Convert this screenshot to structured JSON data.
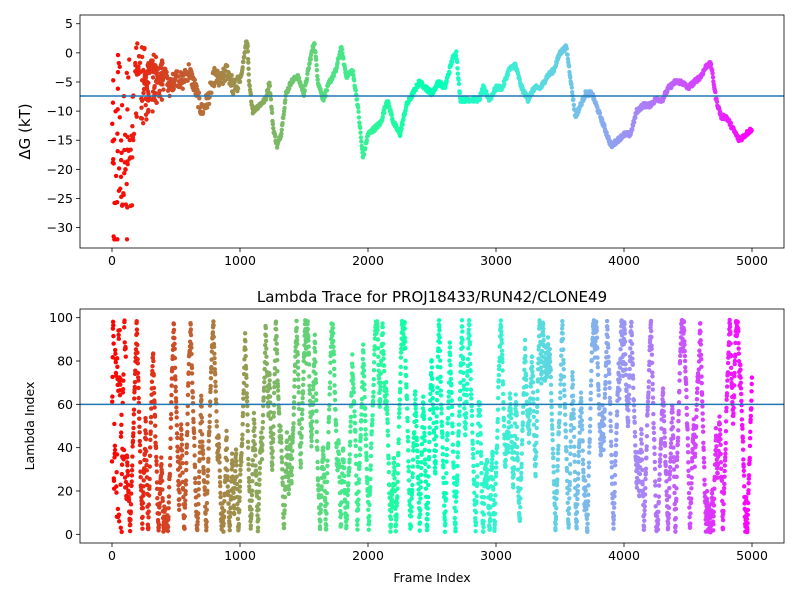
{
  "chart_data": [
    {
      "type": "scatter",
      "title": "",
      "xlabel": "",
      "ylabel": "ΔG (kT)",
      "xlim": [
        -250,
        5250
      ],
      "ylim": [
        -33.5,
        6.5
      ],
      "xticks": [
        0,
        1000,
        2000,
        3000,
        4000,
        5000
      ],
      "xtick_labels": [
        "0",
        "1000",
        "2000",
        "3000",
        "4000",
        "5000"
      ],
      "yticks": [
        5,
        0,
        -5,
        -10,
        -15,
        -20,
        -25,
        -30
      ],
      "ytick_labels": [
        "5",
        "0",
        "−5",
        "−10",
        "−15",
        "−20",
        "−25",
        "−30"
      ],
      "hline": -7.4,
      "hline_color": "#1f77b4",
      "colormap": "rainbow (red at frame 0 → violet at frame 5000)",
      "trace": [
        [
          0,
          -8
        ],
        [
          20,
          4
        ],
        [
          40,
          -5
        ],
        [
          60,
          -28
        ],
        [
          80,
          -10
        ],
        [
          100,
          -4
        ],
        [
          120,
          0
        ],
        [
          150,
          -3
        ],
        [
          200,
          -2
        ],
        [
          250,
          -5
        ],
        [
          300,
          -2
        ],
        [
          350,
          -4
        ],
        [
          400,
          -3
        ],
        [
          450,
          -6
        ],
        [
          500,
          -4
        ],
        [
          550,
          -5
        ],
        [
          600,
          -3
        ],
        [
          650,
          -6
        ],
        [
          700,
          -10
        ],
        [
          750,
          -8
        ],
        [
          800,
          -4
        ],
        [
          850,
          -5
        ],
        [
          900,
          -3
        ],
        [
          950,
          -6
        ],
        [
          1000,
          -5
        ],
        [
          1030,
          -1
        ],
        [
          1050,
          2
        ],
        [
          1060,
          1
        ],
        [
          1070,
          -5
        ],
        [
          1100,
          -10
        ],
        [
          1150,
          -9
        ],
        [
          1200,
          -8
        ],
        [
          1230,
          -5
        ],
        [
          1260,
          -13
        ],
        [
          1290,
          -16
        ],
        [
          1320,
          -14
        ],
        [
          1360,
          -7
        ],
        [
          1400,
          -5
        ],
        [
          1450,
          -4
        ],
        [
          1500,
          -7
        ],
        [
          1550,
          -1
        ],
        [
          1580,
          2
        ],
        [
          1610,
          -5
        ],
        [
          1650,
          -8
        ],
        [
          1700,
          -5
        ],
        [
          1750,
          -3
        ],
        [
          1790,
          1
        ],
        [
          1830,
          -4
        ],
        [
          1880,
          -3
        ],
        [
          1920,
          -9
        ],
        [
          1960,
          -18
        ],
        [
          2000,
          -14
        ],
        [
          2050,
          -13
        ],
        [
          2100,
          -12
        ],
        [
          2150,
          -8
        ],
        [
          2200,
          -12
        ],
        [
          2250,
          -14
        ],
        [
          2300,
          -9
        ],
        [
          2350,
          -7
        ],
        [
          2400,
          -5
        ],
        [
          2450,
          -6
        ],
        [
          2500,
          -7
        ],
        [
          2550,
          -5
        ],
        [
          2600,
          -6
        ],
        [
          2660,
          -1
        ],
        [
          2690,
          0
        ],
        [
          2720,
          -8
        ],
        [
          2800,
          -8
        ],
        [
          2870,
          -8
        ],
        [
          2900,
          -6
        ],
        [
          2950,
          -8
        ],
        [
          3000,
          -6
        ],
        [
          3050,
          -6
        ],
        [
          3100,
          -3
        ],
        [
          3150,
          -2
        ],
        [
          3200,
          -6
        ],
        [
          3250,
          -8
        ],
        [
          3300,
          -6
        ],
        [
          3350,
          -6
        ],
        [
          3400,
          -4
        ],
        [
          3450,
          -3
        ],
        [
          3500,
          0
        ],
        [
          3550,
          1
        ],
        [
          3580,
          -4
        ],
        [
          3620,
          -11
        ],
        [
          3660,
          -9
        ],
        [
          3700,
          -7
        ],
        [
          3750,
          -7
        ],
        [
          3800,
          -10
        ],
        [
          3850,
          -13
        ],
        [
          3900,
          -16
        ],
        [
          3950,
          -15
        ],
        [
          4000,
          -14
        ],
        [
          4050,
          -14
        ],
        [
          4100,
          -10
        ],
        [
          4150,
          -9
        ],
        [
          4200,
          -9
        ],
        [
          4250,
          -8
        ],
        [
          4300,
          -8
        ],
        [
          4350,
          -6
        ],
        [
          4400,
          -5
        ],
        [
          4450,
          -5
        ],
        [
          4500,
          -6
        ],
        [
          4550,
          -5
        ],
        [
          4600,
          -4
        ],
        [
          4650,
          -2
        ],
        [
          4680,
          -2
        ],
        [
          4720,
          -8
        ],
        [
          4760,
          -11
        ],
        [
          4800,
          -11
        ],
        [
          4850,
          -13
        ],
        [
          4900,
          -15
        ],
        [
          4950,
          -14
        ],
        [
          5000,
          -13
        ]
      ]
    },
    {
      "type": "scatter",
      "title": "Lambda Trace for PROJ18433/RUN42/CLONE49",
      "xlabel": "Frame Index",
      "ylabel": "Lambda Index",
      "xlim": [
        -250,
        5250
      ],
      "ylim": [
        -4,
        104
      ],
      "xticks": [
        0,
        1000,
        2000,
        3000,
        4000,
        5000
      ],
      "xtick_labels": [
        "0",
        "1000",
        "2000",
        "3000",
        "4000",
        "5000"
      ],
      "yticks": [
        0,
        20,
        40,
        60,
        80,
        100
      ],
      "ytick_labels": [
        "0",
        "20",
        "40",
        "60",
        "80",
        "100"
      ],
      "hline": 60,
      "hline_color": "#1f77b4",
      "colormap": "rainbow (red at frame 0 → violet at frame 5000)",
      "frames": [
        0,
        5000
      ],
      "lambda_range": [
        0,
        99
      ]
    }
  ]
}
